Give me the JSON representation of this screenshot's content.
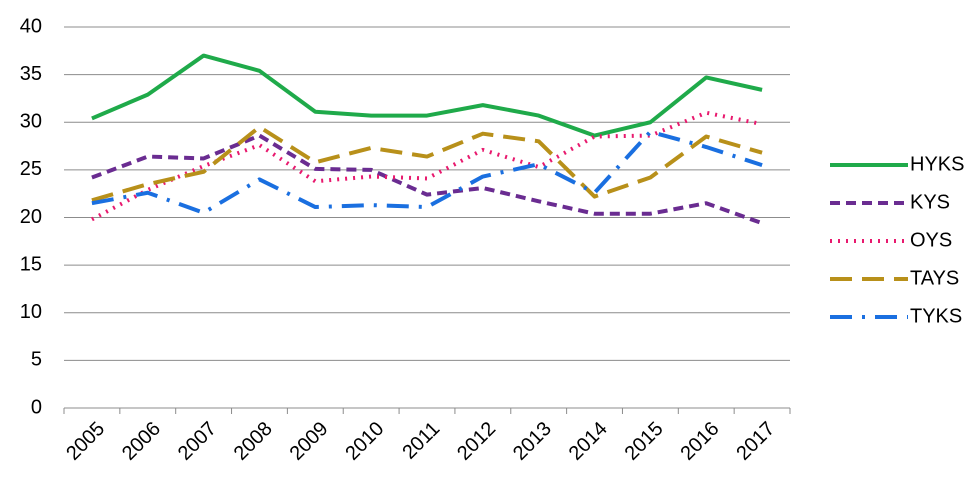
{
  "chart_data": {
    "type": "line",
    "categories": [
      "2005",
      "2006",
      "2007",
      "2008",
      "2009",
      "2010",
      "2011",
      "2012",
      "2013",
      "2014",
      "2015",
      "2016",
      "2017"
    ],
    "series": [
      {
        "name": "HYKS",
        "color": "#1faa4a",
        "dash": "none",
        "values": [
          30.4,
          32.9,
          37.0,
          35.4,
          31.1,
          30.7,
          30.7,
          31.8,
          30.7,
          28.6,
          30.0,
          34.7,
          33.4
        ]
      },
      {
        "name": "KYS",
        "color": "#6a2c91",
        "dash": "10 6",
        "values": [
          24.2,
          26.4,
          26.2,
          28.6,
          25.1,
          25.0,
          22.4,
          23.1,
          21.7,
          20.4,
          20.4,
          21.5,
          19.4
        ]
      },
      {
        "name": "OYS",
        "color": "#e8196e",
        "dash": "2 6",
        "values": [
          19.8,
          22.9,
          25.4,
          27.6,
          23.8,
          24.3,
          24.1,
          27.1,
          25.3,
          28.5,
          28.6,
          31.0,
          29.8
        ]
      },
      {
        "name": "TAYS",
        "color": "#b8901a",
        "dash": "22 10",
        "values": [
          21.8,
          23.5,
          24.8,
          29.5,
          25.8,
          27.3,
          26.4,
          28.8,
          28.0,
          22.2,
          24.2,
          28.5,
          26.8
        ]
      },
      {
        "name": "TYKS",
        "color": "#1a6fe0",
        "dash": "22 10 3 10",
        "values": [
          21.5,
          22.6,
          20.5,
          24.0,
          21.1,
          21.3,
          21.1,
          24.3,
          25.6,
          22.6,
          29.0,
          27.4,
          25.5
        ]
      }
    ],
    "ylim": [
      0,
      40
    ],
    "yticks": [
      0,
      5,
      10,
      15,
      20,
      25,
      30,
      35,
      40
    ],
    "grid": true,
    "legend": "right"
  }
}
